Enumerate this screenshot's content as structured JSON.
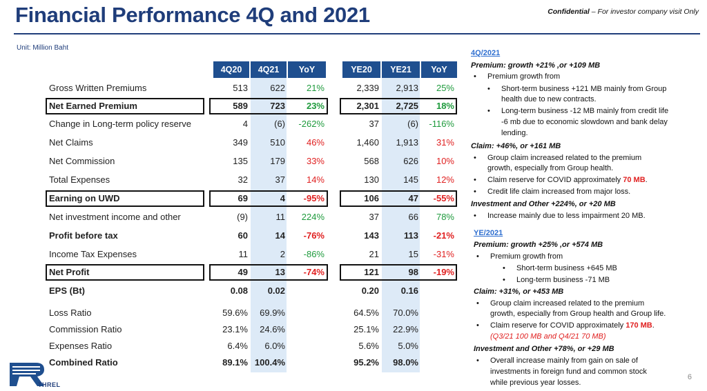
{
  "header": {
    "title": "Financial Performance 4Q and 2021",
    "confidential_bold": "Confidential",
    "confidential_rest": " – For investor company visit Only",
    "unit": "Unit: Million Baht"
  },
  "table": {
    "columns": [
      "4Q20",
      "4Q21",
      "YoY",
      "YE20",
      "YE21",
      "YoY"
    ],
    "rows": [
      {
        "label": "Gross Written Premiums",
        "bold": false,
        "boxed": false,
        "v": [
          "513",
          "622",
          "21%",
          "2,339",
          "2,913",
          "25%"
        ],
        "c": [
          "",
          "",
          "pos",
          "",
          "",
          "pos"
        ]
      },
      {
        "label": "Net Earned Premium",
        "bold": true,
        "boxed": true,
        "v": [
          "589",
          "723",
          "23%",
          "2,301",
          "2,725",
          "18%"
        ],
        "c": [
          "",
          "",
          "pos",
          "",
          "",
          "pos"
        ]
      },
      {
        "label": "Change in Long-term policy reserve",
        "bold": false,
        "boxed": false,
        "v": [
          "4",
          "(6)",
          "-262%",
          "37",
          "(6)",
          "-116%"
        ],
        "c": [
          "",
          "",
          "pos",
          "",
          "",
          "pos"
        ]
      },
      {
        "label": "Net Claims",
        "bold": false,
        "boxed": false,
        "v": [
          "349",
          "510",
          "46%",
          "1,460",
          "1,913",
          "31%"
        ],
        "c": [
          "",
          "",
          "neg",
          "",
          "",
          "neg"
        ]
      },
      {
        "label": "Net Commission",
        "bold": false,
        "boxed": false,
        "v": [
          "135",
          "179",
          "33%",
          "568",
          "626",
          "10%"
        ],
        "c": [
          "",
          "",
          "neg",
          "",
          "",
          "neg"
        ]
      },
      {
        "label": "Total Expenses",
        "bold": false,
        "boxed": false,
        "v": [
          "32",
          "37",
          "14%",
          "130",
          "145",
          "12%"
        ],
        "c": [
          "",
          "",
          "neg",
          "",
          "",
          "neg"
        ]
      },
      {
        "label": "Earning on UWD",
        "bold": true,
        "boxed": true,
        "v": [
          "69",
          "4",
          "-95%",
          "106",
          "47",
          "-55%"
        ],
        "c": [
          "",
          "",
          "neg",
          "",
          "",
          "neg"
        ]
      },
      {
        "label": "Net investment income and other",
        "bold": false,
        "boxed": false,
        "v": [
          "(9)",
          "11",
          "224%",
          "37",
          "66",
          "78%"
        ],
        "c": [
          "",
          "",
          "pos",
          "",
          "",
          "pos"
        ]
      },
      {
        "label": "Profit before tax",
        "bold": true,
        "boxed": false,
        "v": [
          "60",
          "14",
          "-76%",
          "143",
          "113",
          "-21%"
        ],
        "c": [
          "",
          "",
          "neg",
          "",
          "",
          "neg"
        ]
      },
      {
        "label": "Income Tax Expenses",
        "bold": false,
        "boxed": false,
        "v": [
          "11",
          "2",
          "-86%",
          "21",
          "15",
          "-31%"
        ],
        "c": [
          "",
          "",
          "pos",
          "",
          "",
          "neg"
        ]
      },
      {
        "label": "Net Profit",
        "bold": true,
        "boxed": true,
        "v": [
          "49",
          "13",
          "-74%",
          "121",
          "98",
          "-19%"
        ],
        "c": [
          "",
          "",
          "neg",
          "",
          "",
          "neg"
        ]
      },
      {
        "label": "EPS (Bt)",
        "bold": true,
        "boxed": false,
        "v": [
          "0.08",
          "0.02",
          "",
          "0.20",
          "0.16",
          ""
        ],
        "c": [
          "",
          "",
          "",
          "",
          "",
          ""
        ]
      },
      {
        "label": "Loss Ratio",
        "bold": false,
        "boxed": false,
        "v": [
          "59.6%",
          "69.9%",
          "",
          "64.5%",
          "70.0%",
          ""
        ],
        "c": [
          "",
          "",
          "",
          "",
          "",
          ""
        ]
      },
      {
        "label": "Commission Ratio",
        "bold": false,
        "boxed": false,
        "v": [
          "23.1%",
          "24.6%",
          "",
          "25.1%",
          "22.9%",
          ""
        ],
        "c": [
          "",
          "",
          "",
          "",
          "",
          ""
        ]
      },
      {
        "label": "Expenses Ratio",
        "bold": false,
        "boxed": false,
        "v": [
          "6.4%",
          "6.0%",
          "",
          "5.6%",
          "5.0%",
          ""
        ],
        "c": [
          "",
          "",
          "",
          "",
          "",
          ""
        ]
      },
      {
        "label": "Combined Ratio",
        "bold": true,
        "boxed": false,
        "v": [
          "89.1%",
          "100.4%",
          "",
          "95.2%",
          "98.0%",
          ""
        ],
        "c": [
          "",
          "",
          "",
          "",
          "",
          ""
        ]
      }
    ]
  },
  "commentary": {
    "q4_title": "4Q/2021",
    "q4_premium_hd": "Premium: growth +21% ,or +109 MB",
    "q4_p1": "Premium growth from",
    "q4_p1a_1": "Short-term business +121 MB mainly from Group",
    "q4_p1a_2": "health due to new contracts.",
    "q4_p1b_1": "Long-term business -12 MB mainly from credit life",
    "q4_p1b_2": "-6 mb due to economic slowdown and bank delay",
    "q4_p1b_3": "lending.",
    "q4_claim_hd": "Claim:  +46%, or +161 MB",
    "q4_c1_1": "Group claim  increased related to the premium",
    "q4_c1_2": "growth, especially from Group health.",
    "q4_c2_pre": "Claim reserve for COVID approximately ",
    "q4_c2_red": "70 MB",
    "q4_c2_post": ".",
    "q4_c3": "Credit life claim increased from major loss.",
    "q4_inv_hd": "Investment and Other +224%, or +20 MB",
    "q4_i1": "Increase mainly due to less impairment 20 MB.",
    "ye_title": "YE/2021",
    "ye_premium_hd": "Premium: growth +25% ,or +574 MB",
    "ye_p1": "Premium growth from",
    "ye_p1a": "Short-term business +645 MB",
    "ye_p1b": "Long-term business -71 MB",
    "ye_claim_hd": "Claim:  +31%, or +453 MB",
    "ye_c1_1": "Group claim  increased related to the premium",
    "ye_c1_2": "growth, especially from Group health and Group life.",
    "ye_c2_pre": "Claim reserve for COVID approximately ",
    "ye_c2_red": "170 MB",
    "ye_c2_post": ".",
    "ye_c2_note": "(Q3/21 100 MB and Q4/21 70 MB)",
    "ye_inv_hd": "Investment and Other +78%, or +29 MB",
    "ye_i1_1": "Overall increase mainly from gain on sale of",
    "ye_i1_2": "investments in foreign fund and common stock",
    "ye_i1_3": "while previous year losses."
  },
  "footer": {
    "page_number": "6",
    "logo_text": "THREL",
    "logo_icon": "threl-logo-icon"
  },
  "colors": {
    "title": "#1f3d7a",
    "header_fill": "#1f4f8f",
    "column_shade": "#ddeaf7",
    "positive": "#1e9a3c",
    "negative": "#e02020"
  }
}
